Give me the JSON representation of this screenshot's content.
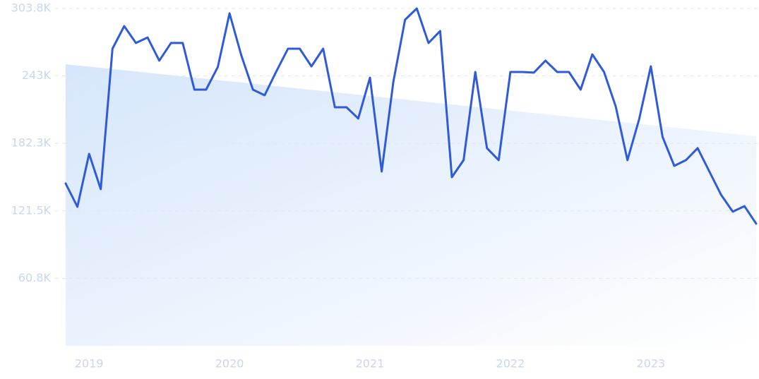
{
  "chart_data": {
    "type": "line",
    "categories": [
      null,
      null,
      "2019",
      null,
      null,
      null,
      null,
      null,
      null,
      null,
      null,
      null,
      null,
      null,
      "2020",
      null,
      null,
      null,
      null,
      null,
      null,
      null,
      null,
      null,
      null,
      null,
      "2021",
      null,
      null,
      null,
      null,
      null,
      null,
      null,
      null,
      null,
      null,
      null,
      "2022",
      null,
      null,
      null,
      null,
      null,
      null,
      null,
      null,
      null,
      null,
      null,
      "2023",
      null,
      null,
      null,
      null,
      null,
      null,
      null,
      null,
      null
    ],
    "series": [
      {
        "color": "#2f5bd9",
        "values": [
          146200,
          125200,
          172900,
          141100,
          267600,
          287900,
          272700,
          277700,
          256800,
          272700,
          272700,
          230700,
          230700,
          251100,
          299400,
          261900,
          230700,
          225600,
          247200,
          267600,
          267600,
          251700,
          267600,
          214800,
          214800,
          204700,
          241500,
          157000,
          237700,
          293600,
          303800,
          272700,
          283500,
          151900,
          167200,
          246600,
          178000,
          167200,
          246600,
          246600,
          246000,
          256800,
          246600,
          246600,
          230700,
          262500,
          246600,
          215500,
          167200,
          204000,
          251700,
          188100,
          162100,
          167200,
          178000,
          157000,
          136000,
          120800,
          125800,
          110000
        ]
      }
    ],
    "ylim": [
      0,
      303800
    ],
    "yticks": [
      {
        "value": 60760,
        "label": "60.8K"
      },
      {
        "value": 121520,
        "label": "121.5K"
      },
      {
        "value": 182280,
        "label": "182.3K"
      },
      {
        "value": 243040,
        "label": "243K"
      },
      {
        "value": 303800,
        "label": "303.8K"
      }
    ],
    "grid": true
  }
}
